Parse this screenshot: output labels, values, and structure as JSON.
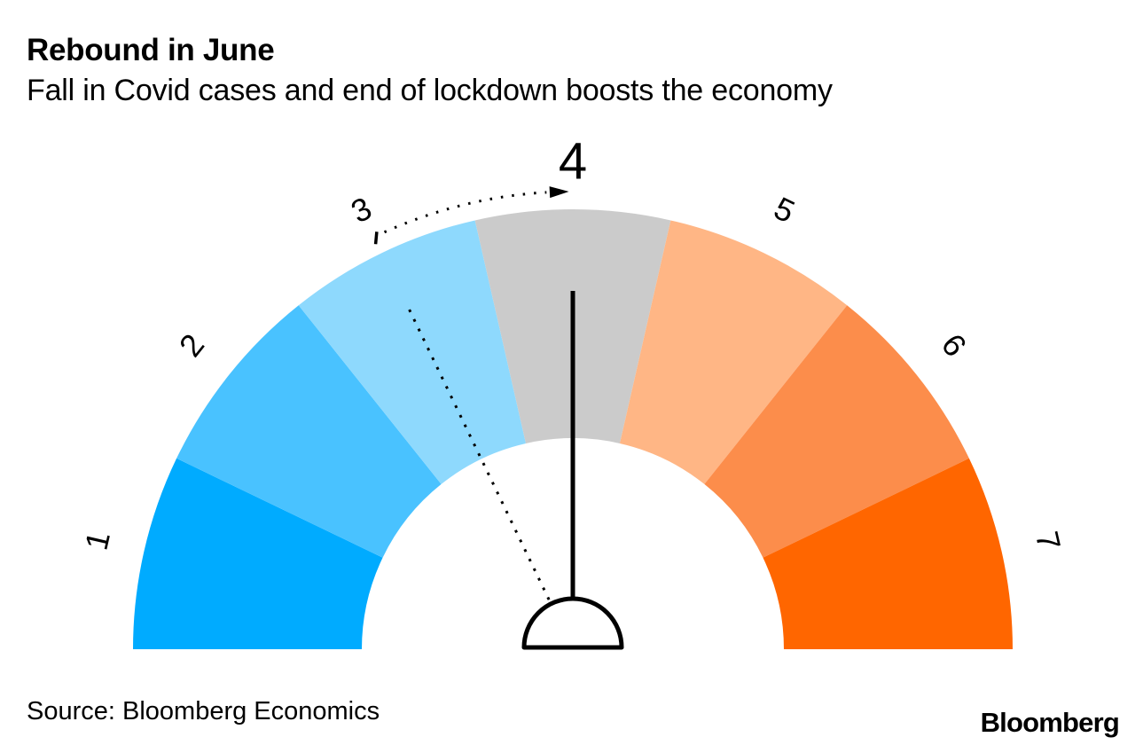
{
  "header": {
    "title": "Rebound in June",
    "subtitle": "Fall in Covid cases and end of lockdown boosts the economy"
  },
  "footer": {
    "source": "Source: Bloomberg Economics",
    "brand": "Bloomberg"
  },
  "chart_data": {
    "type": "gauge",
    "title": "Rebound in June",
    "subtitle": "Fall in Covid cases and end of lockdown boosts the economy",
    "scale": {
      "min": 1,
      "max": 7,
      "start_angle_deg": 180,
      "end_angle_deg": 0
    },
    "categories": [
      "1",
      "2",
      "3",
      "4",
      "5",
      "6",
      "7"
    ],
    "segment_colors": [
      "#00ABFF",
      "#49C2FF",
      "#8ED9FD",
      "#CBCBCB",
      "#FFB685",
      "#FC8D4B",
      "#FF6600"
    ],
    "current_value": 4,
    "previous_value": 3,
    "movement": {
      "from": 3,
      "to": 4,
      "direction": "clockwise",
      "style": "dotted-arrow"
    },
    "needle_color": "#000000",
    "annotation_color": "#000000",
    "source": "Source: Bloomberg Economics",
    "brand": "Bloomberg"
  }
}
